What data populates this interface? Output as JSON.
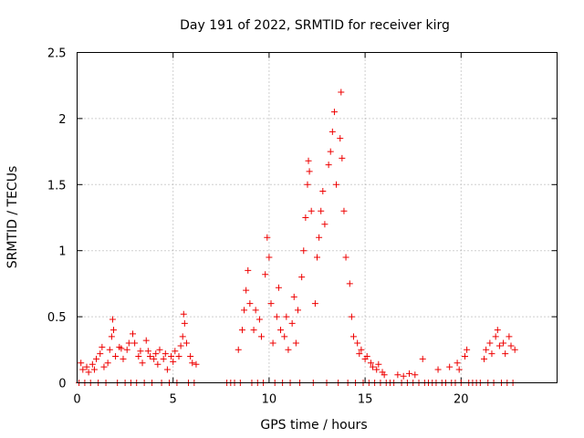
{
  "chart_data": {
    "type": "scatter",
    "title": "Day 191 of 2022, SRMTID for receiver kirg",
    "xlabel": "GPS time / hours",
    "ylabel": "SRMTID / TECUs",
    "xlim": [
      0,
      25
    ],
    "ylim": [
      0,
      2.5
    ],
    "grid": true,
    "marker": "plus",
    "color": "#ee0000",
    "xticks": [
      {
        "value": 0,
        "label": "0"
      },
      {
        "value": 5,
        "label": "5"
      },
      {
        "value": 10,
        "label": "10"
      },
      {
        "value": 15,
        "label": "15"
      },
      {
        "value": 20,
        "label": "20"
      }
    ],
    "yticks": [
      {
        "value": 0,
        "label": "0"
      },
      {
        "value": 0.5,
        "label": "0.5"
      },
      {
        "value": 1,
        "label": "1"
      },
      {
        "value": 1.5,
        "label": "1.5"
      },
      {
        "value": 2,
        "label": "2"
      },
      {
        "value": 2.5,
        "label": "2.5"
      }
    ],
    "series": [
      {
        "name": "SRMTID",
        "points": [
          [
            0.1,
            0.0
          ],
          [
            0.2,
            0.15
          ],
          [
            0.3,
            0.1
          ],
          [
            0.4,
            0.0
          ],
          [
            0.5,
            0.12
          ],
          [
            0.6,
            0.08
          ],
          [
            0.7,
            0.0
          ],
          [
            0.8,
            0.14
          ],
          [
            0.9,
            0.1
          ],
          [
            1.0,
            0.18
          ],
          [
            1.1,
            0.0
          ],
          [
            1.2,
            0.22
          ],
          [
            1.3,
            0.27
          ],
          [
            1.4,
            0.12
          ],
          [
            1.5,
            0.0
          ],
          [
            1.6,
            0.15
          ],
          [
            1.7,
            0.25
          ],
          [
            1.8,
            0.35
          ],
          [
            1.85,
            0.48
          ],
          [
            1.9,
            0.4
          ],
          [
            2.0,
            0.2
          ],
          [
            2.1,
            0.0
          ],
          [
            2.2,
            0.27
          ],
          [
            2.3,
            0.26
          ],
          [
            2.4,
            0.18
          ],
          [
            2.5,
            0.0
          ],
          [
            2.6,
            0.25
          ],
          [
            2.7,
            0.3
          ],
          [
            2.8,
            0.0
          ],
          [
            2.9,
            0.37
          ],
          [
            3.0,
            0.3
          ],
          [
            3.1,
            0.0
          ],
          [
            3.2,
            0.2
          ],
          [
            3.3,
            0.24
          ],
          [
            3.4,
            0.15
          ],
          [
            3.5,
            0.0
          ],
          [
            3.6,
            0.32
          ],
          [
            3.7,
            0.24
          ],
          [
            3.8,
            0.2
          ],
          [
            3.9,
            0.0
          ],
          [
            4.0,
            0.18
          ],
          [
            4.1,
            0.22
          ],
          [
            4.2,
            0.14
          ],
          [
            4.3,
            0.25
          ],
          [
            4.4,
            0.0
          ],
          [
            4.5,
            0.18
          ],
          [
            4.6,
            0.22
          ],
          [
            4.7,
            0.1
          ],
          [
            4.8,
            0.0
          ],
          [
            4.9,
            0.2
          ],
          [
            5.0,
            0.16
          ],
          [
            5.1,
            0.24
          ],
          [
            5.2,
            0.0
          ],
          [
            5.3,
            0.2
          ],
          [
            5.4,
            0.28
          ],
          [
            5.5,
            0.35
          ],
          [
            5.55,
            0.52
          ],
          [
            5.6,
            0.45
          ],
          [
            5.7,
            0.3
          ],
          [
            5.8,
            0.0
          ],
          [
            5.9,
            0.2
          ],
          [
            6.0,
            0.15
          ],
          [
            6.1,
            0.0
          ],
          [
            6.2,
            0.14
          ],
          [
            7.8,
            0.0
          ],
          [
            8.0,
            0.0
          ],
          [
            8.2,
            0.0
          ],
          [
            8.4,
            0.25
          ],
          [
            8.5,
            0.0
          ],
          [
            8.6,
            0.4
          ],
          [
            8.7,
            0.55
          ],
          [
            8.8,
            0.7
          ],
          [
            8.9,
            0.85
          ],
          [
            9.0,
            0.6
          ],
          [
            9.1,
            0.0
          ],
          [
            9.2,
            0.4
          ],
          [
            9.3,
            0.55
          ],
          [
            9.4,
            0.0
          ],
          [
            9.5,
            0.48
          ],
          [
            9.6,
            0.35
          ],
          [
            9.7,
            0.0
          ],
          [
            9.8,
            0.82
          ],
          [
            9.9,
            1.1
          ],
          [
            10.0,
            0.95
          ],
          [
            10.1,
            0.6
          ],
          [
            10.2,
            0.3
          ],
          [
            10.3,
            0.0
          ],
          [
            10.4,
            0.5
          ],
          [
            10.5,
            0.72
          ],
          [
            10.6,
            0.4
          ],
          [
            10.7,
            0.0
          ],
          [
            10.8,
            0.35
          ],
          [
            10.9,
            0.5
          ],
          [
            11.0,
            0.25
          ],
          [
            11.1,
            0.0
          ],
          [
            11.2,
            0.45
          ],
          [
            11.3,
            0.65
          ],
          [
            11.4,
            0.3
          ],
          [
            11.5,
            0.55
          ],
          [
            11.6,
            0.0
          ],
          [
            11.7,
            0.8
          ],
          [
            11.8,
            1.0
          ],
          [
            11.9,
            1.25
          ],
          [
            12.0,
            1.5
          ],
          [
            12.05,
            1.68
          ],
          [
            12.1,
            1.6
          ],
          [
            12.2,
            1.3
          ],
          [
            12.3,
            0.0
          ],
          [
            12.4,
            0.6
          ],
          [
            12.5,
            0.95
          ],
          [
            12.6,
            1.1
          ],
          [
            12.7,
            1.3
          ],
          [
            12.8,
            1.45
          ],
          [
            12.9,
            1.2
          ],
          [
            13.0,
            0.0
          ],
          [
            13.1,
            1.65
          ],
          [
            13.2,
            1.75
          ],
          [
            13.3,
            1.9
          ],
          [
            13.4,
            2.05
          ],
          [
            13.5,
            1.5
          ],
          [
            13.6,
            0.0
          ],
          [
            13.7,
            1.85
          ],
          [
            13.75,
            2.2
          ],
          [
            13.8,
            1.7
          ],
          [
            13.9,
            1.3
          ],
          [
            14.0,
            0.95
          ],
          [
            14.1,
            0.0
          ],
          [
            14.2,
            0.75
          ],
          [
            14.3,
            0.5
          ],
          [
            14.4,
            0.35
          ],
          [
            14.5,
            0.0
          ],
          [
            14.6,
            0.3
          ],
          [
            14.7,
            0.22
          ],
          [
            14.8,
            0.25
          ],
          [
            14.9,
            0.0
          ],
          [
            15.0,
            0.18
          ],
          [
            15.1,
            0.2
          ],
          [
            15.2,
            0.0
          ],
          [
            15.3,
            0.15
          ],
          [
            15.4,
            0.12
          ],
          [
            15.5,
            0.0
          ],
          [
            15.6,
            0.1
          ],
          [
            15.7,
            0.14
          ],
          [
            15.8,
            0.0
          ],
          [
            15.9,
            0.08
          ],
          [
            16.0,
            0.06
          ],
          [
            16.1,
            0.0
          ],
          [
            16.3,
            0.0
          ],
          [
            16.5,
            0.0
          ],
          [
            16.7,
            0.06
          ],
          [
            16.9,
            0.0
          ],
          [
            17.0,
            0.05
          ],
          [
            17.2,
            0.0
          ],
          [
            17.3,
            0.07
          ],
          [
            17.5,
            0.0
          ],
          [
            17.6,
            0.06
          ],
          [
            17.8,
            0.0
          ],
          [
            18.0,
            0.18
          ],
          [
            18.1,
            0.0
          ],
          [
            18.3,
            0.0
          ],
          [
            18.5,
            0.0
          ],
          [
            18.7,
            0.0
          ],
          [
            18.8,
            0.1
          ],
          [
            19.0,
            0.0
          ],
          [
            19.2,
            0.0
          ],
          [
            19.4,
            0.12
          ],
          [
            19.5,
            0.0
          ],
          [
            19.7,
            0.0
          ],
          [
            19.8,
            0.15
          ],
          [
            19.9,
            0.1
          ],
          [
            20.0,
            0.0
          ],
          [
            20.2,
            0.2
          ],
          [
            20.3,
            0.25
          ],
          [
            20.4,
            0.0
          ],
          [
            20.6,
            0.0
          ],
          [
            20.8,
            0.0
          ],
          [
            21.0,
            0.0
          ],
          [
            21.2,
            0.18
          ],
          [
            21.3,
            0.25
          ],
          [
            21.4,
            0.0
          ],
          [
            21.5,
            0.3
          ],
          [
            21.6,
            0.22
          ],
          [
            21.7,
            0.0
          ],
          [
            21.8,
            0.35
          ],
          [
            21.9,
            0.4
          ],
          [
            22.0,
            0.28
          ],
          [
            22.1,
            0.0
          ],
          [
            22.2,
            0.3
          ],
          [
            22.3,
            0.22
          ],
          [
            22.4,
            0.0
          ],
          [
            22.5,
            0.35
          ],
          [
            22.6,
            0.28
          ],
          [
            22.7,
            0.0
          ],
          [
            22.8,
            0.25
          ]
        ]
      }
    ]
  }
}
